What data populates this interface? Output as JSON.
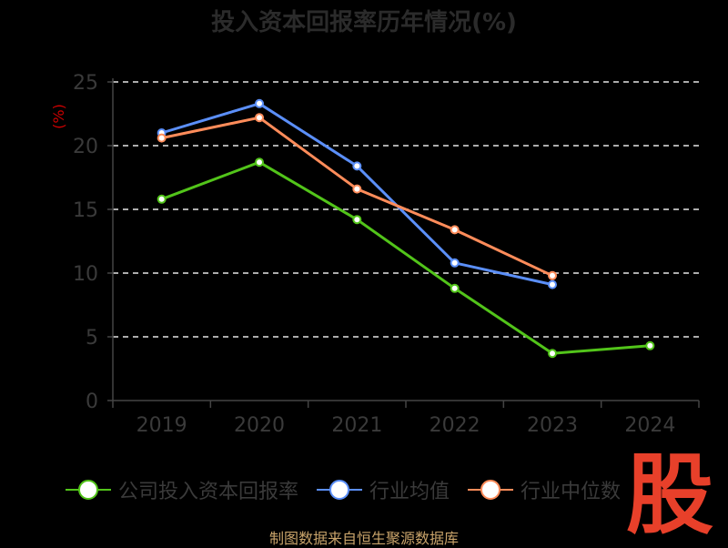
{
  "title": "投入资本回报率历年情况(%)",
  "source": "制图数据来自恒生聚源数据库",
  "watermark": "股",
  "chart_data": {
    "type": "line",
    "title": "投入资本回报率历年情况(%)",
    "ylabel": "(%)",
    "categories": [
      "2019",
      "2020",
      "2021",
      "2022",
      "2023",
      "2024"
    ],
    "ylim": [
      0,
      25
    ],
    "yticks": [
      0,
      5,
      10,
      15,
      20,
      25
    ],
    "grid": true,
    "legend_position": "bottom",
    "series": [
      {
        "name": "公司投入资本回报率",
        "color": "#52c41a",
        "values": [
          15.8,
          18.7,
          14.2,
          8.8,
          3.7,
          4.3
        ]
      },
      {
        "name": "行业均值",
        "color": "#5b8ff9",
        "values": [
          21.0,
          23.3,
          18.4,
          10.8,
          9.1,
          null
        ]
      },
      {
        "name": "行业中位数",
        "color": "#ff8c5a",
        "values": [
          20.6,
          22.2,
          16.6,
          13.4,
          9.8,
          null
        ]
      }
    ]
  }
}
